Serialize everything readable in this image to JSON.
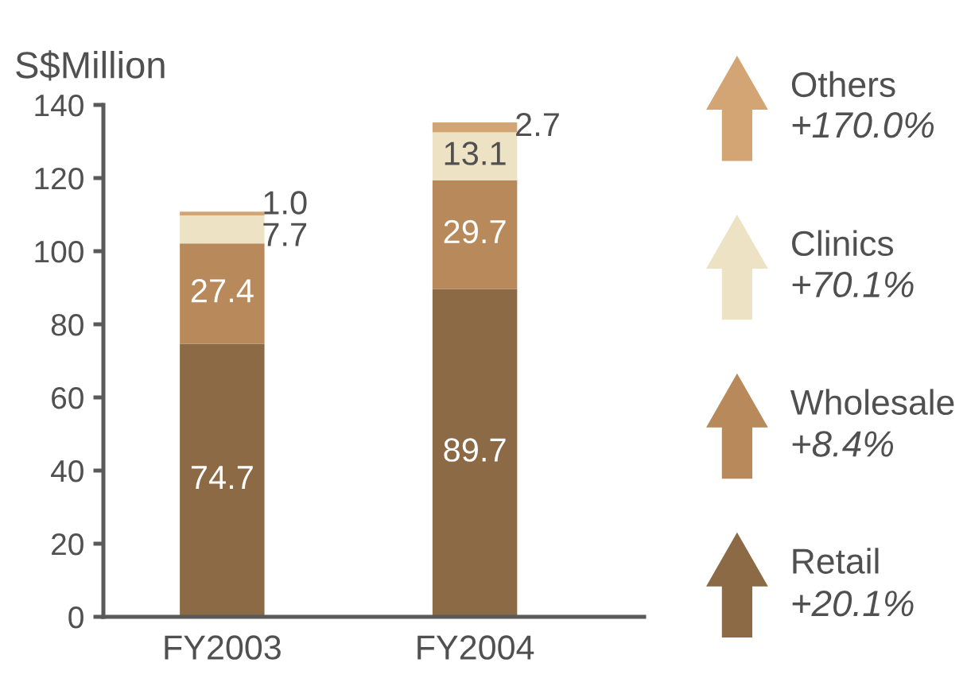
{
  "chart_data": {
    "type": "bar",
    "stacked": true,
    "ylabel": "S$Million",
    "categories": [
      "FY2003",
      "FY2004"
    ],
    "series": [
      {
        "name": "Retail",
        "color": "#8b6a45",
        "values": [
          74.7,
          89.7
        ],
        "value_labels": [
          "74.7",
          "89.7"
        ]
      },
      {
        "name": "Wholesale",
        "color": "#b8895a",
        "values": [
          27.4,
          29.7
        ],
        "value_labels": [
          "27.4",
          "29.7"
        ]
      },
      {
        "name": "Clinics",
        "color": "#ede2c4",
        "values": [
          7.7,
          13.1
        ],
        "value_labels": [
          "7.7",
          "13.1"
        ]
      },
      {
        "name": "Others",
        "color": "#d4a574",
        "values": [
          1.0,
          2.7
        ],
        "value_labels": [
          "1.0",
          "2.7"
        ]
      }
    ],
    "ylim": [
      0,
      140
    ],
    "yticks": [
      0,
      20,
      40,
      60,
      80,
      100,
      120,
      140
    ],
    "legend": "right",
    "annotations": [
      "+20.1%",
      "+8.4%",
      "+70.1%",
      "+170.0%"
    ]
  }
}
